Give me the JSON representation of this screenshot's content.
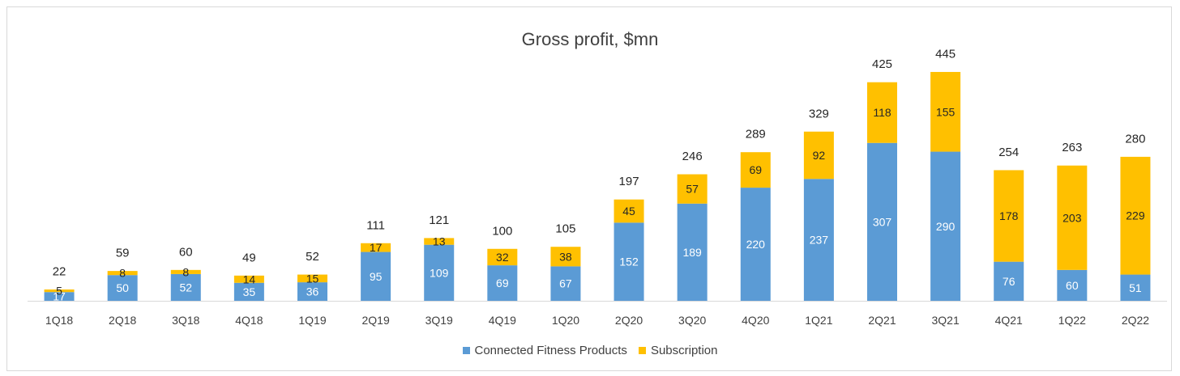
{
  "chart_data": {
    "type": "bar",
    "stacked": true,
    "title": "Gross profit, $mn",
    "xlabel": "",
    "ylabel": "",
    "ylim": [
      0,
      470
    ],
    "grid": false,
    "legend_position": "bottom",
    "categories": [
      "1Q18",
      "2Q18",
      "3Q18",
      "4Q18",
      "1Q19",
      "2Q19",
      "3Q19",
      "4Q19",
      "1Q20",
      "2Q20",
      "3Q20",
      "4Q20",
      "1Q21",
      "2Q21",
      "3Q21",
      "4Q21",
      "1Q22",
      "2Q22"
    ],
    "series": [
      {
        "name": "Connected Fitness Products",
        "color": "#5b9bd5",
        "values": [
          17,
          50,
          52,
          35,
          36,
          95,
          109,
          69,
          67,
          152,
          189,
          220,
          237,
          307,
          290,
          76,
          60,
          51
        ]
      },
      {
        "name": "Subscription",
        "color": "#ffc000",
        "values": [
          5,
          8,
          8,
          14,
          15,
          17,
          13,
          32,
          38,
          45,
          57,
          69,
          92,
          118,
          155,
          178,
          203,
          229
        ]
      }
    ],
    "totals": [
      22,
      59,
      60,
      49,
      52,
      111,
      121,
      100,
      105,
      197,
      246,
      289,
      329,
      425,
      445,
      254,
      263,
      280
    ]
  }
}
